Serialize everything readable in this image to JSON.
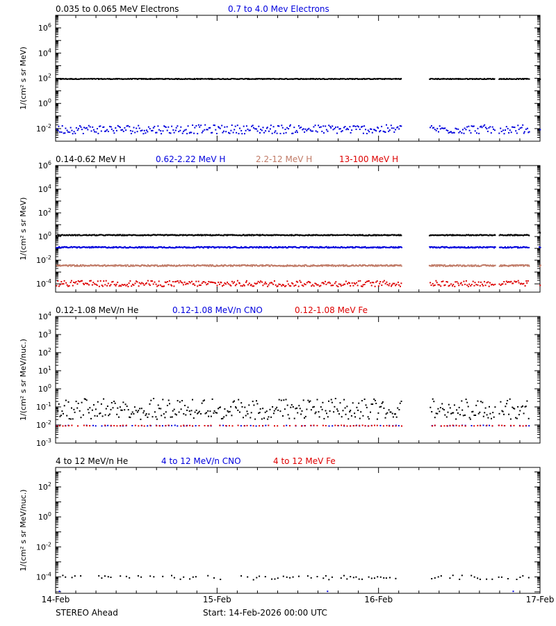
{
  "footer": {
    "spacecraft": "STEREO Ahead",
    "start": "Start: 14-Feb-2026 00:00 UTC"
  },
  "chart_data": [
    {
      "type": "scatter",
      "yscale": "log",
      "ylabel": "1/(cm² s sr MeV)",
      "ylim": [
        0.001,
        10000000
      ],
      "yticks": [
        "10^-2",
        "10^0",
        "10^2",
        "10^4",
        "10^6"
      ],
      "xlim": [
        "14-Feb",
        "17-Feb"
      ],
      "gaps": [
        [
          2.14,
          2.31
        ],
        [
          2.72,
          2.74
        ],
        [
          2.93,
          2.99
        ]
      ],
      "series": [
        {
          "name": "0.035 to 0.065 MeV Electrons",
          "color": "#000000",
          "level": 100,
          "spread": 0.03,
          "style": "line"
        },
        {
          "name": "0.7 to 4.0 Mev Electrons",
          "color": "#0000dd",
          "level": 0.01,
          "spread": 0.35,
          "style": "scatter"
        }
      ]
    },
    {
      "type": "scatter",
      "yscale": "log",
      "ylabel": "1/(cm² s sr MeV)",
      "ylim": [
        2e-05,
        1000000
      ],
      "yticks": [
        "10^-4",
        "10^-2",
        "10^0",
        "10^2",
        "10^4",
        "10^6"
      ],
      "xlim": [
        "14-Feb",
        "17-Feb"
      ],
      "gaps": [
        [
          2.14,
          2.31
        ],
        [
          2.72,
          2.74
        ],
        [
          2.93,
          2.99
        ]
      ],
      "series": [
        {
          "name": "0.14-0.62 MeV H",
          "color": "#000000",
          "level": 1.5,
          "spread": 0.04,
          "style": "line"
        },
        {
          "name": "0.62-2.22 MeV H",
          "color": "#0000dd",
          "level": 0.14,
          "spread": 0.05,
          "style": "line"
        },
        {
          "name": "2.2-12 MeV H",
          "color": "#c07a66",
          "level": 0.004,
          "spread": 0.06,
          "style": "line"
        },
        {
          "name": "13-100 MeV H",
          "color": "#dd0000",
          "level": 0.00012,
          "spread": 0.25,
          "style": "scatter"
        }
      ]
    },
    {
      "type": "scatter",
      "yscale": "log",
      "ylabel": "1/(cm² s sr MeV/nuc.)",
      "ylim": [
        0.001,
        10000
      ],
      "yticks": [
        "10^-3",
        "10^-2",
        "10^-1",
        "10^0",
        "10^1",
        "10^2",
        "10^3",
        "10^4"
      ],
      "xlim": [
        "14-Feb",
        "17-Feb"
      ],
      "gaps": [
        [
          2.14,
          2.31
        ],
        [
          2.72,
          2.74
        ],
        [
          2.93,
          2.99
        ]
      ],
      "series": [
        {
          "name": "0.12-1.08 MeV/n He",
          "color": "#000000",
          "level": 0.05,
          "spread": 0.35,
          "style": "scatter"
        },
        {
          "name": "0.12-1.08 MeV/n CNO",
          "color": "#0000dd",
          "level": 0.01,
          "spread": 0.02,
          "style": "sparse"
        },
        {
          "name": "0.12-1.08 MeV Fe",
          "color": "#dd0000",
          "level": 0.01,
          "spread": 0.02,
          "style": "sparse"
        }
      ]
    },
    {
      "type": "scatter",
      "yscale": "log",
      "ylabel": "1/(cm² s sr MeV/nuc.)",
      "ylim": [
        8e-06,
        2000
      ],
      "yticks": [
        "10^-4",
        "10^-2",
        "10^0",
        "10^2"
      ],
      "xlim": [
        "14-Feb",
        "17-Feb"
      ],
      "gaps": [
        [
          2.14,
          2.31
        ],
        [
          2.72,
          2.74
        ],
        [
          2.93,
          2.99
        ]
      ],
      "series": [
        {
          "name": "4 to 12 MeV/n He",
          "color": "#000000",
          "level": 0.0001,
          "spread": 0.15,
          "style": "sparse"
        },
        {
          "name": "4 to 12 MeV/n CNO",
          "color": "#0000dd",
          "level": 1.2e-05,
          "spread": 0.0,
          "style": "rare"
        },
        {
          "name": "4 to 12 MeV Fe",
          "color": "#dd0000",
          "level": 1.2e-05,
          "spread": 0.0,
          "style": "none"
        }
      ]
    }
  ],
  "xticks": [
    "14-Feb",
    "15-Feb",
    "16-Feb",
    "17-Feb"
  ]
}
